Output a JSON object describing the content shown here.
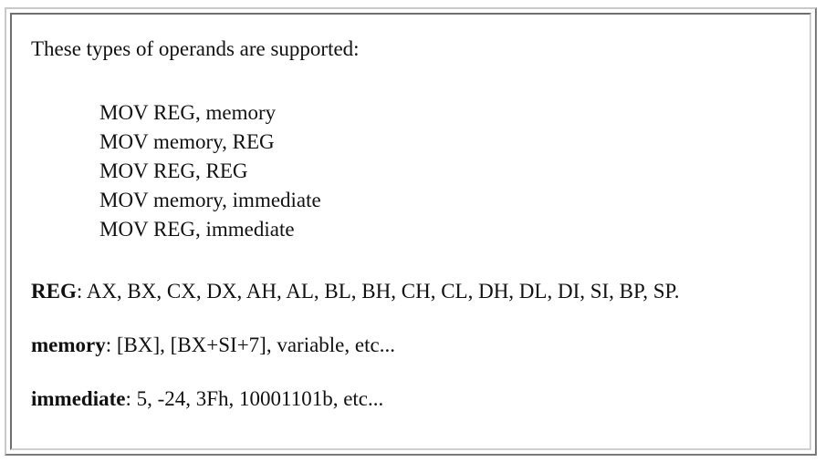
{
  "intro": "These types of operands are supported:",
  "forms": [
    "MOV REG, memory",
    "MOV memory, REG",
    "MOV REG, REG",
    "MOV memory, immediate",
    "MOV REG, immediate"
  ],
  "definitions": {
    "reg": {
      "term": "REG",
      "text": ": AX, BX, CX, DX, AH, AL, BL, BH, CH, CL, DH, DL, DI, SI, BP, SP."
    },
    "memory": {
      "term": "memory",
      "text": ": [BX], [BX+SI+7], variable, etc..."
    },
    "immediate": {
      "term": "immediate",
      "text": ": 5, -24, 3Fh, 10001101b, etc..."
    }
  }
}
